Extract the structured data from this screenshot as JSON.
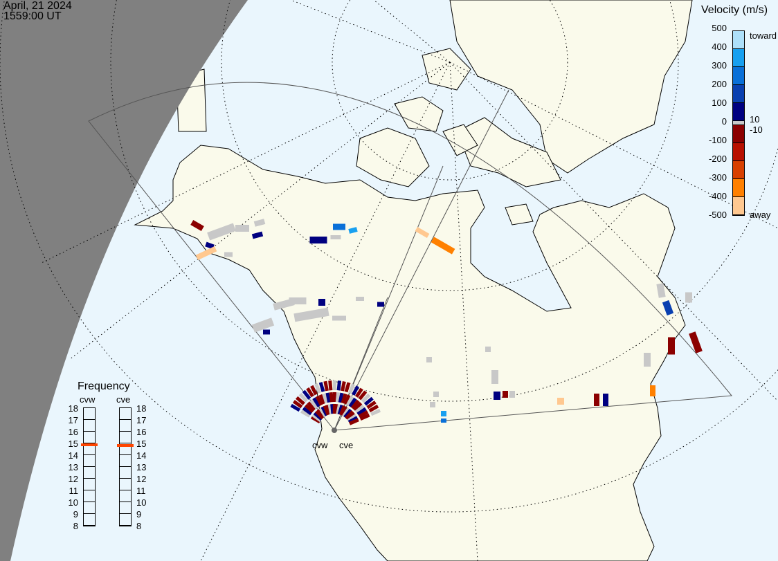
{
  "header": {
    "date": "April, 21 2024",
    "time": "1559:00 UT"
  },
  "velocity_legend": {
    "title": "Velocity (m/s)",
    "ticks": [
      "500",
      "400",
      "300",
      "200",
      "100",
      "0",
      "-100",
      "-200",
      "-300",
      "-400",
      "-500"
    ],
    "toward_label": "toward",
    "away_label": "away",
    "threshold_pos": "10",
    "threshold_neg": "-10",
    "colors": [
      "#aee0fa",
      "#18a0f0",
      "#0a70d8",
      "#0a40b0",
      "#000080",
      "#8b0000",
      "#b81000",
      "#d84000",
      "#ff8000",
      "#ffc890"
    ],
    "ground_scatter_color": "#c8c8c8"
  },
  "frequency_legend": {
    "title": "Frequency",
    "radars": [
      {
        "name": "cvw",
        "frequency_mhz": 14.9
      },
      {
        "name": "cve",
        "frequency_mhz": 14.85
      }
    ],
    "ticks": [
      "18",
      "17",
      "16",
      "15",
      "14",
      "13",
      "12",
      "11",
      "10",
      "9",
      "8"
    ],
    "range": [
      8,
      18
    ],
    "marker_color": "#ff4500"
  },
  "radar_labels": [
    "cvw",
    "cve"
  ],
  "colors": {
    "ocean": "#eaf6fd",
    "land": "#fafaeb",
    "night": "#808080"
  }
}
